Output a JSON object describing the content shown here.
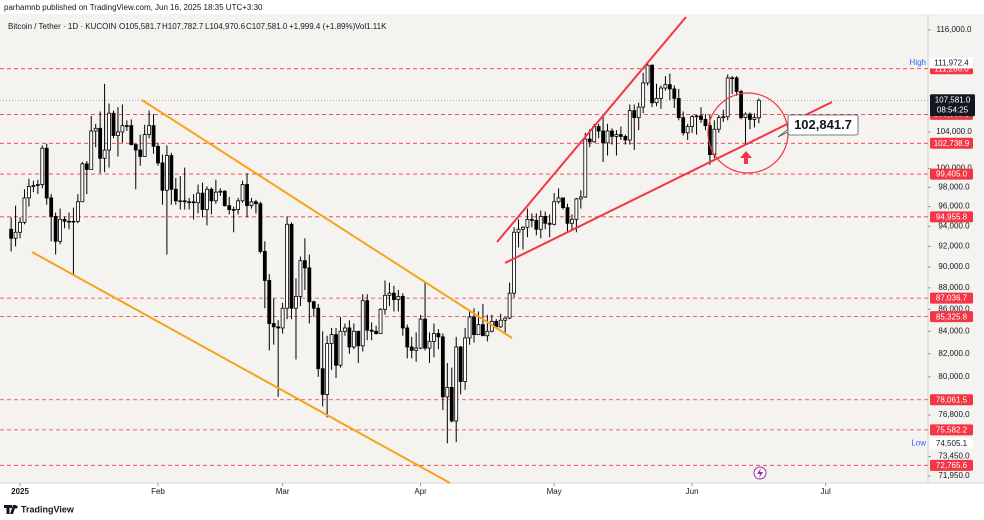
{
  "chart_data": {
    "type": "candlestick",
    "header": {
      "published": "parhamnb published on TradingView.com, Jun 16, 2025 18:35 UTC+3:30",
      "symbol": "Bitcoin / Tether · 1D · KUCOIN",
      "o": "O105,581.7",
      "h": "H107,782.7",
      "l": "L104,970.6",
      "c": "C107,581.0",
      "change": "+1,999.4 (+1.89%)",
      "vol": "Vol1.11K"
    },
    "footer": "TradingView",
    "log_scale": true,
    "ylim": [
      71400,
      118000
    ],
    "xlim": [
      -2.5,
      206
    ],
    "up_color": "#ffffff",
    "down_color": "#000000",
    "outline_color": "#000000",
    "level_color": "#f23645",
    "ohlc": [
      [
        93700,
        94900,
        91500,
        92800
      ],
      [
        92800,
        96100,
        92000,
        93400
      ],
      [
        93400,
        94900,
        92800,
        94400
      ],
      [
        94400,
        97800,
        94200,
        96900
      ],
      [
        96900,
        98900,
        96000,
        98100
      ],
      [
        98100,
        98700,
        97500,
        98200
      ],
      [
        98200,
        98800,
        97300,
        98300
      ],
      [
        98300,
        102500,
        97900,
        102200
      ],
      [
        102200,
        102700,
        96200,
        96900
      ],
      [
        96900,
        97300,
        92500,
        95000
      ],
      [
        95000,
        95400,
        91200,
        92500
      ],
      [
        92500,
        95800,
        92200,
        94700
      ],
      [
        94700,
        95000,
        93800,
        94500
      ],
      [
        94500,
        95400,
        93700,
        94500
      ],
      [
        94500,
        95900,
        89300,
        94500
      ],
      [
        94500,
        97300,
        94300,
        96500
      ],
      [
        96500,
        100700,
        96500,
        100500
      ],
      [
        100500,
        100800,
        97300,
        99900
      ],
      [
        99900,
        105800,
        99900,
        104100
      ],
      [
        104100,
        104900,
        102300,
        104400
      ],
      [
        104400,
        106300,
        99500,
        101100
      ],
      [
        101100,
        109500,
        99600,
        102000
      ],
      [
        102000,
        107200,
        100100,
        106100
      ],
      [
        106100,
        106400,
        103300,
        103600
      ],
      [
        103600,
        106800,
        101300,
        104000
      ],
      [
        104000,
        107100,
        102800,
        104700
      ],
      [
        104700,
        105300,
        104100,
        104700
      ],
      [
        104700,
        105400,
        102500,
        102600
      ],
      [
        102600,
        102700,
        97800,
        102000
      ],
      [
        102000,
        103700,
        100300,
        101300
      ],
      [
        101300,
        104800,
        101300,
        103700
      ],
      [
        103700,
        106400,
        103300,
        104700
      ],
      [
        104700,
        106000,
        101600,
        102400
      ],
      [
        102400,
        102800,
        100300,
        100600
      ],
      [
        100600,
        101500,
        96200,
        97700
      ],
      [
        97700,
        102500,
        91200,
        101400
      ],
      [
        101400,
        101700,
        96200,
        97800
      ],
      [
        97800,
        99000,
        96200,
        96600
      ],
      [
        96600,
        99200,
        95700,
        96600
      ],
      [
        96600,
        100100,
        95700,
        96500
      ],
      [
        96500,
        96900,
        95700,
        96500
      ],
      [
        96500,
        97300,
        94700,
        96400
      ],
      [
        96400,
        98300,
        95300,
        97400
      ],
      [
        97400,
        98500,
        94900,
        95700
      ],
      [
        95700,
        98100,
        94100,
        97800
      ],
      [
        97800,
        98000,
        95200,
        96600
      ],
      [
        96600,
        98800,
        96300,
        97500
      ],
      [
        97500,
        97900,
        97100,
        97600
      ],
      [
        97600,
        97700,
        96000,
        96100
      ],
      [
        96100,
        97000,
        95200,
        95700
      ],
      [
        95700,
        96000,
        93400,
        95700
      ],
      [
        95700,
        96900,
        95200,
        96600
      ],
      [
        96600,
        98700,
        96400,
        98300
      ],
      [
        98300,
        99500,
        94900,
        96100
      ],
      [
        96100,
        96900,
        95800,
        96500
      ],
      [
        96500,
        96700,
        95300,
        96300
      ],
      [
        96300,
        96500,
        91300,
        91500
      ],
      [
        91500,
        92500,
        86100,
        88700
      ],
      [
        88700,
        89300,
        82300,
        84700
      ],
      [
        84700,
        87000,
        82800,
        84400
      ],
      [
        84400,
        85000,
        78300,
        84300
      ],
      [
        84300,
        86600,
        83800,
        86100
      ],
      [
        86100,
        95000,
        85100,
        94200
      ],
      [
        94200,
        94400,
        85100,
        86100
      ],
      [
        86100,
        88900,
        81500,
        87200
      ],
      [
        87200,
        91000,
        86300,
        90600
      ],
      [
        90600,
        92800,
        87800,
        89900
      ],
      [
        89900,
        91200,
        84700,
        86700
      ],
      [
        86700,
        86800,
        85300,
        86100
      ],
      [
        86100,
        86500,
        80000,
        80700
      ],
      [
        80700,
        84000,
        77500,
        78500
      ],
      [
        78500,
        83600,
        76600,
        82900
      ],
      [
        82900,
        84300,
        80600,
        83700
      ],
      [
        83700,
        84300,
        79900,
        81000
      ],
      [
        81000,
        85300,
        80800,
        84000
      ],
      [
        84000,
        84700,
        83600,
        84300
      ],
      [
        84300,
        85000,
        82000,
        82600
      ],
      [
        82600,
        84700,
        82400,
        84000
      ],
      [
        84000,
        84000,
        81200,
        82700
      ],
      [
        82700,
        87400,
        82200,
        86800
      ],
      [
        86800,
        87400,
        83200,
        84100
      ],
      [
        84100,
        84800,
        83200,
        84000
      ],
      [
        84000,
        84500,
        83700,
        83800
      ],
      [
        83800,
        86100,
        83800,
        86000
      ],
      [
        86000,
        88700,
        85500,
        87300
      ],
      [
        87300,
        88500,
        86300,
        87500
      ],
      [
        87500,
        88200,
        85800,
        86900
      ],
      [
        86900,
        87800,
        85800,
        87200
      ],
      [
        87200,
        87500,
        83600,
        84300
      ],
      [
        84300,
        84600,
        81600,
        82600
      ],
      [
        82600,
        83500,
        81600,
        82300
      ],
      [
        82300,
        83900,
        81300,
        82500
      ],
      [
        82500,
        85500,
        82400,
        85100
      ],
      [
        85100,
        88500,
        82300,
        82500
      ],
      [
        82500,
        83900,
        81200,
        83100
      ],
      [
        83100,
        84700,
        81700,
        83800
      ],
      [
        83800,
        84200,
        82400,
        83500
      ],
      [
        83500,
        83800,
        77200,
        78300
      ],
      [
        78300,
        81200,
        74500,
        79100
      ],
      [
        79100,
        80800,
        76200,
        76300
      ],
      [
        76300,
        83500,
        74600,
        82600
      ],
      [
        82600,
        82700,
        78500,
        79600
      ],
      [
        79600,
        84300,
        78900,
        83400
      ],
      [
        83400,
        85900,
        82800,
        85300
      ],
      [
        85300,
        86100,
        83000,
        83700
      ],
      [
        83700,
        85800,
        83700,
        84600
      ],
      [
        84600,
        86500,
        83600,
        83600
      ],
      [
        83600,
        85500,
        83100,
        84000
      ],
      [
        84000,
        85500,
        83900,
        84900
      ],
      [
        84900,
        85100,
        84300,
        84400
      ],
      [
        84400,
        85600,
        84300,
        85000
      ],
      [
        85000,
        85300,
        83900,
        85200
      ],
      [
        85200,
        88500,
        85100,
        87500
      ],
      [
        87500,
        93900,
        87100,
        93400
      ],
      [
        93400,
        94700,
        91900,
        93700
      ],
      [
        93700,
        94000,
        91700,
        93900
      ],
      [
        93900,
        95800,
        92900,
        94700
      ],
      [
        94700,
        95300,
        93900,
        94600
      ],
      [
        94600,
        95300,
        93100,
        93700
      ],
      [
        93700,
        95600,
        92800,
        95000
      ],
      [
        95000,
        95500,
        93700,
        94300
      ],
      [
        94300,
        95200,
        92900,
        94200
      ],
      [
        94200,
        97400,
        94100,
        96500
      ],
      [
        96500,
        97900,
        96300,
        96900
      ],
      [
        96900,
        96900,
        95700,
        95900
      ],
      [
        95900,
        96300,
        93400,
        94300
      ],
      [
        94300,
        95200,
        93500,
        94700
      ],
      [
        94700,
        96900,
        93400,
        96800
      ],
      [
        96800,
        97700,
        95800,
        97000
      ],
      [
        97000,
        103900,
        96900,
        103200
      ],
      [
        103200,
        104300,
        102300,
        102900
      ],
      [
        102900,
        104900,
        102800,
        104600
      ],
      [
        104600,
        104900,
        103300,
        104100
      ],
      [
        104100,
        105800,
        100700,
        102800
      ],
      [
        102800,
        104900,
        101400,
        104100
      ],
      [
        104100,
        104400,
        102600,
        103500
      ],
      [
        103500,
        104200,
        101400,
        103700
      ],
      [
        103700,
        104600,
        103100,
        103500
      ],
      [
        103500,
        103700,
        102600,
        103100
      ],
      [
        103100,
        107100,
        102600,
        106400
      ],
      [
        106400,
        107100,
        102000,
        105600
      ],
      [
        105600,
        107300,
        104200,
        106800
      ],
      [
        106800,
        110800,
        106100,
        109600
      ],
      [
        109600,
        111970,
        109300,
        111700
      ],
      [
        111700,
        111800,
        106800,
        107300
      ],
      [
        107300,
        109500,
        106900,
        107800
      ],
      [
        107800,
        109300,
        106600,
        109000
      ],
      [
        109000,
        110400,
        108700,
        109400
      ],
      [
        109400,
        110700,
        107600,
        108900
      ],
      [
        108900,
        109300,
        106700,
        107800
      ],
      [
        107800,
        108900,
        105300,
        105600
      ],
      [
        105600,
        106300,
        103600,
        103900
      ],
      [
        103900,
        104900,
        103100,
        104600
      ],
      [
        104600,
        105900,
        103900,
        105700
      ],
      [
        105700,
        105900,
        103700,
        105800
      ],
      [
        105800,
        106800,
        105000,
        105400
      ],
      [
        105400,
        106000,
        104200,
        104700
      ],
      [
        104700,
        105900,
        100400,
        101500
      ],
      [
        101500,
        105300,
        101100,
        104300
      ],
      [
        104300,
        105900,
        103900,
        105600
      ],
      [
        105600,
        106500,
        105100,
        105700
      ],
      [
        105700,
        110600,
        105300,
        110200
      ],
      [
        110200,
        110400,
        108300,
        110200
      ],
      [
        110200,
        110400,
        108100,
        108600
      ],
      [
        108600,
        108800,
        105400,
        105600
      ],
      [
        105600,
        106200,
        102700,
        106000
      ],
      [
        106000,
        106200,
        104300,
        105400
      ],
      [
        105400,
        106100,
        104500,
        105600
      ],
      [
        105581.7,
        107782.7,
        104970.6,
        107581.0
      ]
    ],
    "yticks": [
      {
        "value": 116000,
        "label": "116,000.0"
      },
      {
        "value": 104000,
        "label": "104,000.0"
      },
      {
        "value": 100000,
        "label": "100,000.0"
      },
      {
        "value": 98000,
        "label": "98,000.0"
      },
      {
        "value": 96000,
        "label": "96,000.0"
      },
      {
        "value": 94000,
        "label": "94,000.0"
      },
      {
        "value": 92000,
        "label": "92,000.0"
      },
      {
        "value": 90000,
        "label": "90,000.0"
      },
      {
        "value": 88000,
        "label": "88,000.0"
      },
      {
        "value": 86000,
        "label": "86,000.0"
      },
      {
        "value": 84000,
        "label": "84,000.0"
      },
      {
        "value": 82000,
        "label": "82,000.0"
      },
      {
        "value": 80000,
        "label": "80,000.0"
      },
      {
        "value": 76800,
        "label": "76,800.0"
      },
      {
        "value": 73450,
        "label": "73,450.0"
      },
      {
        "value": 71950,
        "label": "71,950.0"
      }
    ],
    "xticks": [
      {
        "value": 2,
        "label": "2025"
      },
      {
        "value": 33,
        "label": "Feb"
      },
      {
        "value": 61,
        "label": "Mar"
      },
      {
        "value": 92,
        "label": "Apr"
      },
      {
        "value": 122,
        "label": "May"
      },
      {
        "value": 153,
        "label": "Jun"
      },
      {
        "value": 183,
        "label": "Jul"
      }
    ],
    "levels": [
      {
        "value": 111286.0,
        "label": "111,286.0"
      },
      {
        "value": 105963.9,
        "label": "105,963.9"
      },
      {
        "value": 102738.9,
        "label": "102,738.9"
      },
      {
        "value": 99405.0,
        "label": "99,405.0"
      },
      {
        "value": 94955.8,
        "label": "94,955.8"
      },
      {
        "value": 87036.7,
        "label": "87,036.7"
      },
      {
        "value": 85325.8,
        "label": "85,325.8"
      },
      {
        "value": 78061.5,
        "label": "78,061.5"
      },
      {
        "value": 75582.2,
        "label": "75,582.2"
      },
      {
        "value": 72765.6,
        "label": "72,765.6"
      }
    ],
    "high": {
      "name": "High",
      "value": 111972.4,
      "label": "111,972.4"
    },
    "low": {
      "name": "Low",
      "value": 74505.1,
      "label": "74,505.1"
    },
    "last_price": {
      "value": 107581.0,
      "label": "107,581.0",
      "countdown": "08:54:25"
    },
    "callout": "102,841.7"
  }
}
